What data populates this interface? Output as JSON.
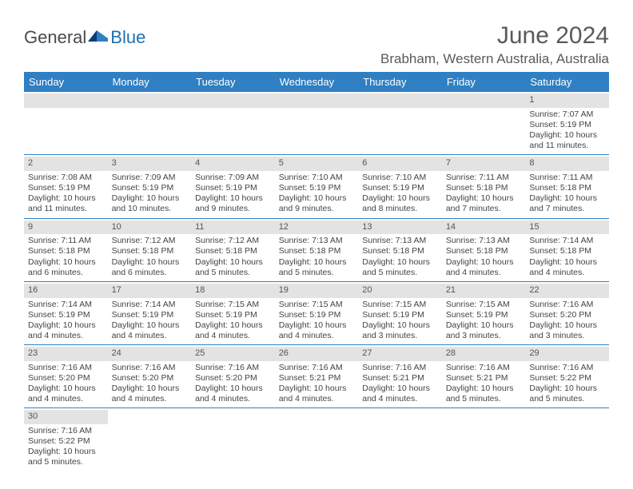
{
  "brand": {
    "part1": "General",
    "part2": "Blue"
  },
  "title": "June 2024",
  "location": "Brabham, Western Australia, Australia",
  "colors": {
    "header_bg": "#2f7fc2",
    "header_text": "#ffffff",
    "daynum_bg": "#e3e3e3",
    "row_border": "#2f7fc2",
    "text": "#444444",
    "title_text": "#5a5a5a"
  },
  "dayNames": [
    "Sunday",
    "Monday",
    "Tuesday",
    "Wednesday",
    "Thursday",
    "Friday",
    "Saturday"
  ],
  "weeks": [
    [
      {
        "n": "",
        "lines": []
      },
      {
        "n": "",
        "lines": []
      },
      {
        "n": "",
        "lines": []
      },
      {
        "n": "",
        "lines": []
      },
      {
        "n": "",
        "lines": []
      },
      {
        "n": "",
        "lines": []
      },
      {
        "n": "1",
        "lines": [
          "Sunrise: 7:07 AM",
          "Sunset: 5:19 PM",
          "Daylight: 10 hours and 11 minutes."
        ]
      }
    ],
    [
      {
        "n": "2",
        "lines": [
          "Sunrise: 7:08 AM",
          "Sunset: 5:19 PM",
          "Daylight: 10 hours and 11 minutes."
        ]
      },
      {
        "n": "3",
        "lines": [
          "Sunrise: 7:09 AM",
          "Sunset: 5:19 PM",
          "Daylight: 10 hours and 10 minutes."
        ]
      },
      {
        "n": "4",
        "lines": [
          "Sunrise: 7:09 AM",
          "Sunset: 5:19 PM",
          "Daylight: 10 hours and 9 minutes."
        ]
      },
      {
        "n": "5",
        "lines": [
          "Sunrise: 7:10 AM",
          "Sunset: 5:19 PM",
          "Daylight: 10 hours and 9 minutes."
        ]
      },
      {
        "n": "6",
        "lines": [
          "Sunrise: 7:10 AM",
          "Sunset: 5:19 PM",
          "Daylight: 10 hours and 8 minutes."
        ]
      },
      {
        "n": "7",
        "lines": [
          "Sunrise: 7:11 AM",
          "Sunset: 5:18 PM",
          "Daylight: 10 hours and 7 minutes."
        ]
      },
      {
        "n": "8",
        "lines": [
          "Sunrise: 7:11 AM",
          "Sunset: 5:18 PM",
          "Daylight: 10 hours and 7 minutes."
        ]
      }
    ],
    [
      {
        "n": "9",
        "lines": [
          "Sunrise: 7:11 AM",
          "Sunset: 5:18 PM",
          "Daylight: 10 hours and 6 minutes."
        ]
      },
      {
        "n": "10",
        "lines": [
          "Sunrise: 7:12 AM",
          "Sunset: 5:18 PM",
          "Daylight: 10 hours and 6 minutes."
        ]
      },
      {
        "n": "11",
        "lines": [
          "Sunrise: 7:12 AM",
          "Sunset: 5:18 PM",
          "Daylight: 10 hours and 5 minutes."
        ]
      },
      {
        "n": "12",
        "lines": [
          "Sunrise: 7:13 AM",
          "Sunset: 5:18 PM",
          "Daylight: 10 hours and 5 minutes."
        ]
      },
      {
        "n": "13",
        "lines": [
          "Sunrise: 7:13 AM",
          "Sunset: 5:18 PM",
          "Daylight: 10 hours and 5 minutes."
        ]
      },
      {
        "n": "14",
        "lines": [
          "Sunrise: 7:13 AM",
          "Sunset: 5:18 PM",
          "Daylight: 10 hours and 4 minutes."
        ]
      },
      {
        "n": "15",
        "lines": [
          "Sunrise: 7:14 AM",
          "Sunset: 5:18 PM",
          "Daylight: 10 hours and 4 minutes."
        ]
      }
    ],
    [
      {
        "n": "16",
        "lines": [
          "Sunrise: 7:14 AM",
          "Sunset: 5:19 PM",
          "Daylight: 10 hours and 4 minutes."
        ]
      },
      {
        "n": "17",
        "lines": [
          "Sunrise: 7:14 AM",
          "Sunset: 5:19 PM",
          "Daylight: 10 hours and 4 minutes."
        ]
      },
      {
        "n": "18",
        "lines": [
          "Sunrise: 7:15 AM",
          "Sunset: 5:19 PM",
          "Daylight: 10 hours and 4 minutes."
        ]
      },
      {
        "n": "19",
        "lines": [
          "Sunrise: 7:15 AM",
          "Sunset: 5:19 PM",
          "Daylight: 10 hours and 4 minutes."
        ]
      },
      {
        "n": "20",
        "lines": [
          "Sunrise: 7:15 AM",
          "Sunset: 5:19 PM",
          "Daylight: 10 hours and 3 minutes."
        ]
      },
      {
        "n": "21",
        "lines": [
          "Sunrise: 7:15 AM",
          "Sunset: 5:19 PM",
          "Daylight: 10 hours and 3 minutes."
        ]
      },
      {
        "n": "22",
        "lines": [
          "Sunrise: 7:16 AM",
          "Sunset: 5:20 PM",
          "Daylight: 10 hours and 3 minutes."
        ]
      }
    ],
    [
      {
        "n": "23",
        "lines": [
          "Sunrise: 7:16 AM",
          "Sunset: 5:20 PM",
          "Daylight: 10 hours and 4 minutes."
        ]
      },
      {
        "n": "24",
        "lines": [
          "Sunrise: 7:16 AM",
          "Sunset: 5:20 PM",
          "Daylight: 10 hours and 4 minutes."
        ]
      },
      {
        "n": "25",
        "lines": [
          "Sunrise: 7:16 AM",
          "Sunset: 5:20 PM",
          "Daylight: 10 hours and 4 minutes."
        ]
      },
      {
        "n": "26",
        "lines": [
          "Sunrise: 7:16 AM",
          "Sunset: 5:21 PM",
          "Daylight: 10 hours and 4 minutes."
        ]
      },
      {
        "n": "27",
        "lines": [
          "Sunrise: 7:16 AM",
          "Sunset: 5:21 PM",
          "Daylight: 10 hours and 4 minutes."
        ]
      },
      {
        "n": "28",
        "lines": [
          "Sunrise: 7:16 AM",
          "Sunset: 5:21 PM",
          "Daylight: 10 hours and 5 minutes."
        ]
      },
      {
        "n": "29",
        "lines": [
          "Sunrise: 7:16 AM",
          "Sunset: 5:22 PM",
          "Daylight: 10 hours and 5 minutes."
        ]
      }
    ],
    [
      {
        "n": "30",
        "lines": [
          "Sunrise: 7:16 AM",
          "Sunset: 5:22 PM",
          "Daylight: 10 hours and 5 minutes."
        ]
      },
      {
        "n": "",
        "lines": []
      },
      {
        "n": "",
        "lines": []
      },
      {
        "n": "",
        "lines": []
      },
      {
        "n": "",
        "lines": []
      },
      {
        "n": "",
        "lines": []
      },
      {
        "n": "",
        "lines": []
      }
    ]
  ]
}
